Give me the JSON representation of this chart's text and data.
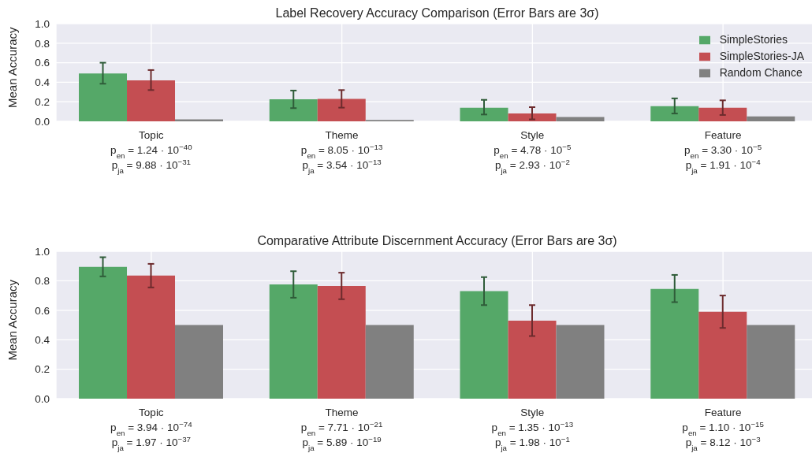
{
  "chart_data": [
    {
      "type": "bar",
      "title": "Label Recovery Accuracy Comparison (Error Bars are 3σ)",
      "ylabel": "Mean Accuracy",
      "categories": [
        "Topic\np$_{en}$ = 1.24 · 10$^{−40}$\np$_{ja}$ = 9.88 · 10$^{−31}$",
        "Theme\np$_{en}$ = 8.05 · 10$^{−13}$\np$_{ja}$ = 3.54 · 10$^{−13}$",
        "Style\np$_{en}$ = 4.78 · 10$^{−5}$\np$_{ja}$ = 2.93 · 10$^{−2}$",
        "Feature\np$_{en}$ = 3.30 · 10$^{−5}$\np$_{ja}$ = 1.91 · 10$^{−4}$"
      ],
      "series": [
        {
          "name": "SimpleStories",
          "color": "#55a868",
          "values": [
            0.49,
            0.225,
            0.14,
            0.155
          ],
          "errors": [
            [
              0.385,
              0.6
            ],
            [
              0.135,
              0.315
            ],
            [
              0.07,
              0.22
            ],
            [
              0.08,
              0.235
            ]
          ]
        },
        {
          "name": "SimpleStories-JA",
          "color": "#c44e52",
          "values": [
            0.42,
            0.23,
            0.08,
            0.14
          ],
          "errors": [
            [
              0.32,
              0.525
            ],
            [
              0.14,
              0.32
            ],
            [
              0.02,
              0.145
            ],
            [
              0.065,
              0.215
            ]
          ]
        },
        {
          "name": "Random Chance",
          "color": "#808080",
          "values": [
            0.02,
            0.015,
            0.045,
            0.05
          ]
        }
      ],
      "ylim": [
        0,
        1
      ],
      "yticks": [
        {
          "value": 0,
          "label": "0.0"
        },
        {
          "value": 0.2,
          "label": "0.2"
        },
        {
          "value": 0.4,
          "label": "0.4"
        },
        {
          "value": 0.6,
          "label": "0.6"
        },
        {
          "value": 0.8,
          "label": "0.8"
        },
        {
          "value": 1,
          "label": "1.0"
        }
      ],
      "grid": true,
      "legend": "top right"
    },
    {
      "type": "bar",
      "title": "Comparative Attribute Discernment Accuracy (Error Bars are 3σ)",
      "ylabel": "Mean Accuracy",
      "categories": [
        "Topic\np$_{en}$ = 3.94 · 10$^{−74}$\np$_{ja}$ = 1.97 · 10$^{−37}$",
        "Theme\np$_{en}$ = 7.71 · 10$^{−21}$\np$_{ja}$ = 5.89 · 10$^{−19}$",
        "Style\np$_{en}$ = 1.35 · 10$^{−13}$\np$_{ja}$ = 1.98 · 10$^{−1}$",
        "Feature\np$_{en}$ = 1.10 · 10$^{−15}$\np$_{ja}$ = 8.12 · 10$^{−3}$"
      ],
      "series": [
        {
          "color": "#55a868",
          "values": [
            0.895,
            0.775,
            0.73,
            0.745
          ],
          "errors": [
            [
              0.83,
              0.96
            ],
            [
              0.685,
              0.865
            ],
            [
              0.635,
              0.825
            ],
            [
              0.655,
              0.84
            ]
          ]
        },
        {
          "color": "#c44e52",
          "values": [
            0.835,
            0.765,
            0.53,
            0.59
          ],
          "errors": [
            [
              0.755,
              0.915
            ],
            [
              0.675,
              0.855
            ],
            [
              0.425,
              0.635
            ],
            [
              0.48,
              0.7
            ]
          ]
        },
        {
          "color": "#808080",
          "values": [
            0.5,
            0.5,
            0.5,
            0.5
          ]
        }
      ],
      "ylim": [
        0,
        1
      ],
      "yticks": [
        {
          "value": 0,
          "label": "0.0"
        },
        {
          "value": 0.2,
          "label": "0.2"
        },
        {
          "value": 0.4,
          "label": "0.4"
        },
        {
          "value": 0.6,
          "label": "0.6"
        },
        {
          "value": 0.8,
          "label": "0.8"
        },
        {
          "value": 1,
          "label": "1.0"
        }
      ],
      "grid": true
    }
  ]
}
